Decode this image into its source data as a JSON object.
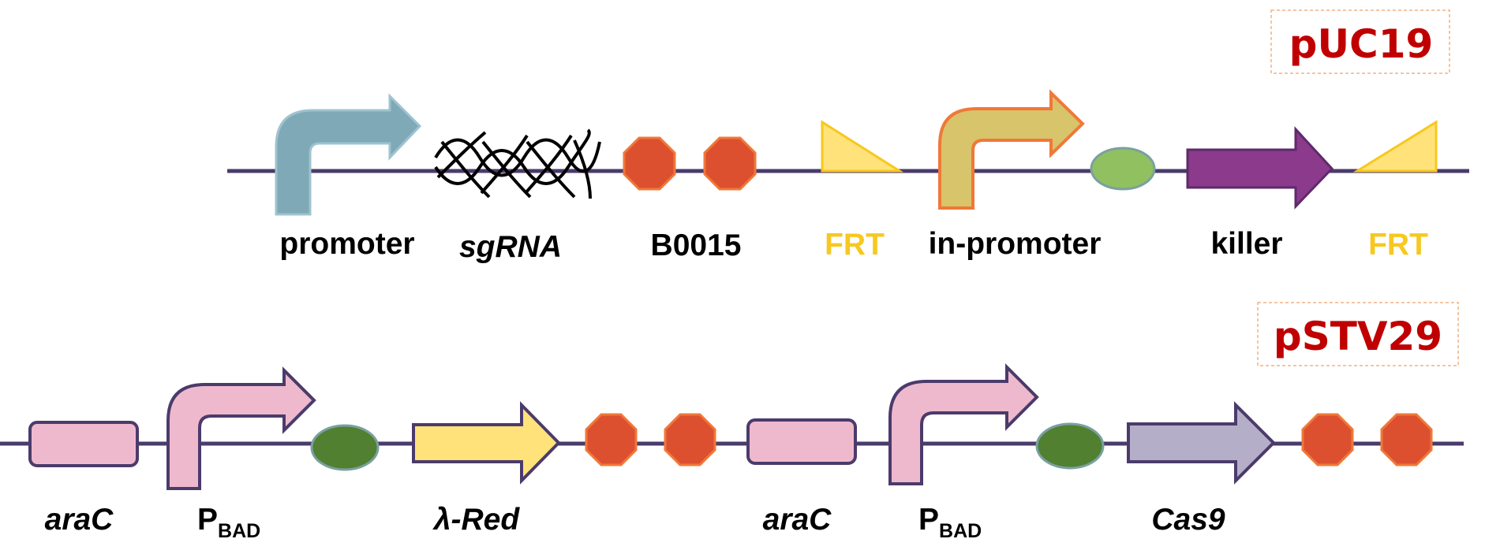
{
  "colors": {
    "backbone": "#4b3b6b",
    "plasmid_label": "#c00000",
    "frt_label": "#f7c81e",
    "terminator_fill": "#dc5030",
    "terminator_stroke": "#f07838"
  },
  "constructs": [
    {
      "plasmid": "pUC19",
      "parts": [
        {
          "type": "promoter",
          "label": "promoter",
          "icon": "promoter-arrow-icon"
        },
        {
          "type": "sgRNA",
          "label": "sgRNA",
          "icon": "sgrna-helix-icon"
        },
        {
          "type": "terminator",
          "label": "B0015",
          "icon": "double-terminator-icon"
        },
        {
          "type": "FRT",
          "label": "FRT",
          "icon": "frt-triangle-icon"
        },
        {
          "type": "promoter",
          "label": "in-promoter",
          "icon": "promoter-arrow-icon"
        },
        {
          "type": "RBS",
          "label": "",
          "icon": "rbs-oval-icon"
        },
        {
          "type": "CDS",
          "label": "killer",
          "icon": "cds-arrow-icon"
        },
        {
          "type": "FRT",
          "label": "FRT",
          "icon": "frt-triangle-icon"
        }
      ]
    },
    {
      "plasmid": "pSTV29",
      "parts": [
        {
          "type": "CDS",
          "label": "araC",
          "icon": "gene-box-icon"
        },
        {
          "type": "promoter",
          "label": "P",
          "label_sub": "BAD",
          "icon": "promoter-arrow-icon"
        },
        {
          "type": "RBS",
          "label": "",
          "icon": "rbs-oval-icon"
        },
        {
          "type": "CDS",
          "label": "λ-Red",
          "icon": "cds-arrow-icon"
        },
        {
          "type": "terminator",
          "label": "",
          "icon": "double-terminator-icon"
        },
        {
          "type": "CDS",
          "label": "araC",
          "icon": "gene-box-icon"
        },
        {
          "type": "promoter",
          "label": "P",
          "label_sub": "BAD",
          "icon": "promoter-arrow-icon"
        },
        {
          "type": "RBS",
          "label": "",
          "icon": "rbs-oval-icon"
        },
        {
          "type": "CDS",
          "label": "Cas9",
          "icon": "cds-arrow-icon"
        },
        {
          "type": "terminator",
          "label": "",
          "icon": "double-terminator-icon"
        }
      ]
    }
  ]
}
